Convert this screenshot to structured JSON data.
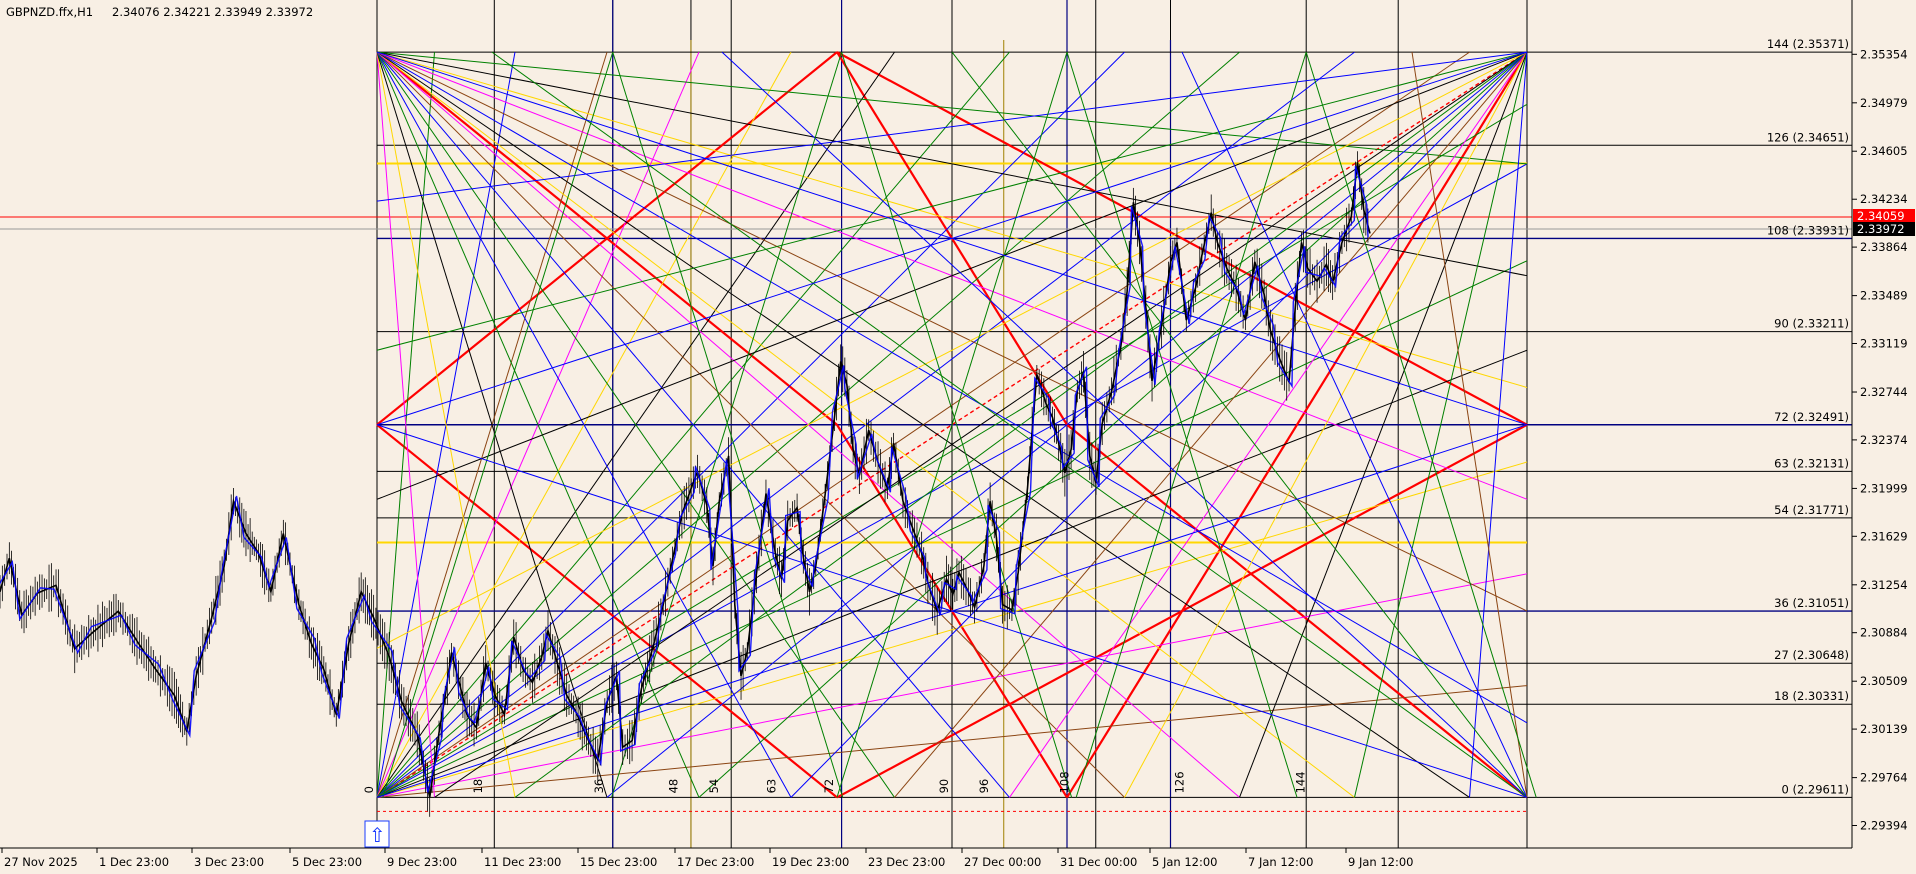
{
  "chart_header": {
    "symbol": "GBPNZD.ffx,H1",
    "ohlc": "2.34076 2.34221 2.33949 2.33972"
  },
  "chart_data": {
    "type": "candlestick",
    "title": "GBPNZD.ffx,H1",
    "ylim": [
      2.2922,
      2.3565
    ],
    "price_ticks": [
      "2.35354",
      "2.34979",
      "2.34605",
      "2.34234",
      "2.33864",
      "2.33489",
      "2.33119",
      "2.32744",
      "2.32374",
      "2.31999",
      "2.31629",
      "2.31254",
      "2.30884",
      "2.30509",
      "2.30139",
      "2.29764",
      "2.29394"
    ],
    "time_ticks": [
      "27 Nov 2025",
      "1 Dec 23:00",
      "3 Dec 23:00",
      "5 Dec 23:00",
      "9 Dec 23:00",
      "11 Dec 23:00",
      "15 Dec 23:00",
      "17 Dec 23:00",
      "19 Dec 23:00",
      "23 Dec 23:00",
      "27 Dec 00:00",
      "31 Dec 00:00",
      "5 Jan 12:00",
      "7 Jan 12:00",
      "9 Jan 12:00"
    ],
    "gann_grid": {
      "price_low": 2.29611,
      "price_high": 2.35371,
      "levels": [
        {
          "label": "144 (2.35371)",
          "value": 2.35371
        },
        {
          "label": "126 (2.34651)",
          "value": 2.34651
        },
        {
          "label": "108 (2.33931)",
          "value": 2.33931
        },
        {
          "label": "90 (2.33211)",
          "value": 2.33211
        },
        {
          "label": "72 (2.32491)",
          "value": 2.32491
        },
        {
          "label": "63 (2.32131)",
          "value": 2.32131
        },
        {
          "label": "54 (2.31771)",
          "value": 2.31771
        },
        {
          "label": "36 (2.31051)",
          "value": 2.31051
        },
        {
          "label": "27 (2.30648)",
          "value": 2.30648
        },
        {
          "label": "18 (2.30331)",
          "value": 2.30331
        },
        {
          "label": "0 (2.29611)",
          "value": 2.29611
        }
      ],
      "yellow_levels": [
        2.3451,
        2.31581
      ],
      "counts": [
        "0",
        "18",
        "36",
        "48",
        "54",
        "63",
        "72",
        "90",
        "96",
        "108",
        "126",
        "144"
      ]
    },
    "current_price": "2.33972",
    "bid_line": "2.34059",
    "colors": {
      "background": "#f8efe4",
      "red": "#ff0000",
      "blue": "#0000ff",
      "green": "#008000",
      "yellow": "#ffd700",
      "brown": "#8b4513",
      "magenta": "#ff00ff",
      "navy": "#000080",
      "black": "#000000"
    },
    "price_path": [
      [
        0.0,
        2.312
      ],
      [
        3,
        2.3146
      ],
      [
        7,
        2.3102
      ],
      [
        12,
        2.3119
      ],
      [
        18,
        2.3125
      ],
      [
        24,
        2.3076
      ],
      [
        30,
        2.3089
      ],
      [
        38,
        2.3105
      ],
      [
        44,
        2.3082
      ],
      [
        50,
        2.306
      ],
      [
        56,
        2.304
      ],
      [
        60,
        2.3012
      ],
      [
        63,
        2.3055
      ],
      [
        68,
        2.31
      ],
      [
        72,
        2.314
      ],
      [
        75,
        2.319
      ],
      [
        79,
        2.3165
      ],
      [
        83,
        2.315
      ],
      [
        87,
        2.312
      ],
      [
        91,
        2.3165
      ],
      [
        96,
        2.311
      ],
      [
        100,
        2.308
      ],
      [
        104,
        2.306
      ],
      [
        108,
        2.3025
      ],
      [
        112,
        2.308
      ],
      [
        116,
        2.312
      ],
      [
        120,
        2.31
      ],
      [
        125,
        2.307
      ],
      [
        129,
        2.3035
      ],
      [
        134,
        2.301
      ],
      [
        138,
        2.2961
      ],
      [
        141,
        2.3011
      ],
      [
        143,
        2.304
      ],
      [
        145,
        2.3073
      ],
      [
        148,
        2.3045
      ],
      [
        150,
        2.3025
      ],
      [
        153,
        2.3015
      ],
      [
        156,
        2.3065
      ],
      [
        159,
        2.304
      ],
      [
        162,
        2.3025
      ],
      [
        165,
        2.3085
      ],
      [
        168,
        2.306
      ],
      [
        171,
        2.305
      ],
      [
        174,
        2.307
      ],
      [
        176,
        2.309
      ],
      [
        179,
        2.3065
      ],
      [
        182,
        2.304
      ],
      [
        185,
        2.3027
      ],
      [
        189,
        2.3005
      ],
      [
        192,
        2.299
      ],
      [
        195,
        2.3035
      ],
      [
        198,
        2.3055
      ],
      [
        200,
        2.3
      ],
      [
        203,
        2.3005
      ],
      [
        206,
        2.3045
      ],
      [
        210,
        2.308
      ],
      [
        213,
        2.311
      ],
      [
        216,
        2.3145
      ],
      [
        219,
        2.318
      ],
      [
        222,
        2.32
      ],
      [
        224,
        2.3213
      ],
      [
        227,
        2.3187
      ],
      [
        229,
        2.314
      ],
      [
        231,
        2.319
      ],
      [
        234,
        2.3225
      ],
      [
        236,
        2.311
      ],
      [
        238,
        2.3055
      ],
      [
        240,
        2.3074
      ],
      [
        243,
        2.3135
      ],
      [
        246,
        2.3196
      ],
      [
        249,
        2.315
      ],
      [
        251,
        2.313
      ],
      [
        253,
        2.3175
      ],
      [
        256,
        2.3185
      ],
      [
        258,
        2.3147
      ],
      [
        260,
        2.312
      ],
      [
        262,
        2.314
      ],
      [
        265,
        2.3195
      ],
      [
        268,
        2.3255
      ],
      [
        270,
        2.3298
      ],
      [
        272,
        2.328
      ],
      [
        274,
        2.323
      ],
      [
        276,
        2.321
      ],
      [
        279,
        2.3245
      ],
      [
        282,
        2.322
      ],
      [
        285,
        2.32
      ],
      [
        287,
        2.3235
      ],
      [
        290,
        2.319
      ],
      [
        293,
        2.317
      ],
      [
        296,
        2.315
      ],
      [
        298,
        2.3127
      ],
      [
        301,
        2.3105
      ],
      [
        304,
        2.313
      ],
      [
        306,
        2.3118
      ],
      [
        308,
        2.3135
      ],
      [
        311,
        2.312
      ],
      [
        313,
        2.3108
      ],
      [
        316,
        2.314
      ],
      [
        318,
        2.319
      ],
      [
        320,
        2.3162
      ],
      [
        322,
        2.311
      ],
      [
        325,
        2.3106
      ],
      [
        327,
        2.3135
      ],
      [
        330,
        2.32
      ],
      [
        333,
        2.3288
      ],
      [
        336,
        2.3265
      ],
      [
        338,
        2.3255
      ],
      [
        340,
        2.3235
      ],
      [
        342,
        2.3212
      ],
      [
        344,
        2.323
      ],
      [
        346,
        2.3275
      ],
      [
        348,
        2.329
      ],
      [
        350,
        2.3225
      ],
      [
        352,
        2.3204
      ],
      [
        354,
        2.325
      ],
      [
        357,
        2.3275
      ],
      [
        360,
        2.331
      ],
      [
        362,
        2.3352
      ],
      [
        364,
        2.3421
      ],
      [
        366,
        2.339
      ],
      [
        368,
        2.334
      ],
      [
        370,
        2.3283
      ],
      [
        373,
        2.3325
      ],
      [
        376,
        2.3375
      ],
      [
        378,
        2.339
      ],
      [
        381,
        2.333
      ],
      [
        384,
        2.3355
      ],
      [
        386,
        2.338
      ],
      [
        389,
        2.3413
      ],
      [
        391,
        2.339
      ],
      [
        394,
        2.337
      ],
      [
        397,
        2.3355
      ],
      [
        400,
        2.333
      ],
      [
        403,
        2.3375
      ],
      [
        406,
        2.335
      ],
      [
        408,
        2.3322
      ],
      [
        411,
        2.33
      ],
      [
        414,
        2.3282
      ],
      [
        416,
        2.334
      ],
      [
        418,
        2.339
      ],
      [
        420,
        2.337
      ],
      [
        423,
        2.336
      ],
      [
        426,
        2.3373
      ],
      [
        428,
        2.3359
      ],
      [
        431,
        2.339
      ],
      [
        434,
        2.341
      ],
      [
        436,
        2.3452
      ],
      [
        438,
        2.3415
      ],
      [
        440,
        2.3397
      ]
    ]
  },
  "price_axis": {
    "bid_tag": "2.34059",
    "current_tag": "2.33972"
  },
  "toolbar": {
    "arrow_glyph": "⇧"
  }
}
